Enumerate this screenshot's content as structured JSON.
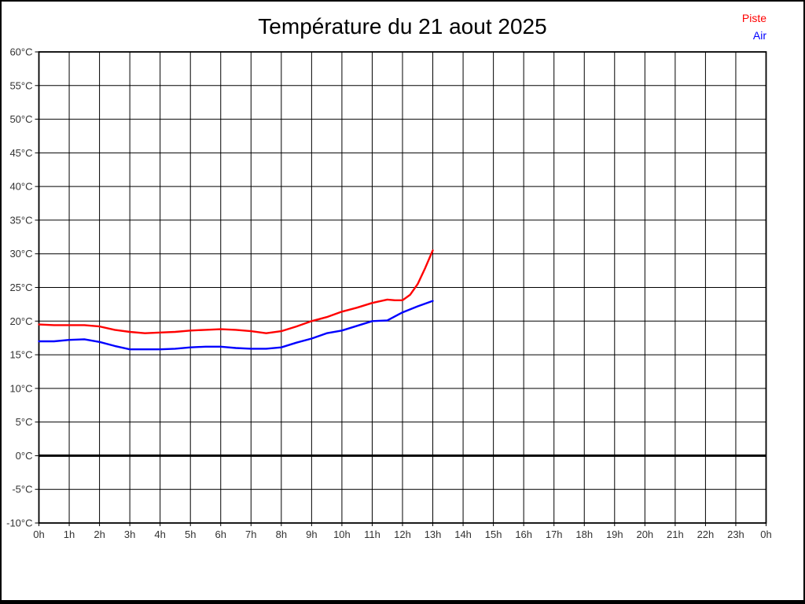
{
  "page": {
    "title": "Température du 21 aout 2025"
  },
  "legend": {
    "piste": "Piste",
    "air": "Air"
  },
  "colors": {
    "background": "#ffffff",
    "border": "#000000",
    "grid": "#000000",
    "frame": "#000000",
    "zero_line": "#000000",
    "title": "#000000",
    "tick_label": "#333333",
    "piste": "#ff0000",
    "air": "#0000ff"
  },
  "chart_data": {
    "type": "line",
    "title": "Température du 21 aout 2025",
    "xlabel": "",
    "ylabel": "",
    "xlim": [
      0,
      24
    ],
    "ylim": [
      -10,
      60
    ],
    "grid": true,
    "zero_line_value": 0,
    "legend_position": "top-right",
    "x_ticks": {
      "values": [
        0,
        1,
        2,
        3,
        4,
        5,
        6,
        7,
        8,
        9,
        10,
        11,
        12,
        13,
        14,
        15,
        16,
        17,
        18,
        19,
        20,
        21,
        22,
        23,
        24
      ],
      "labels": [
        "0h",
        "1h",
        "2h",
        "3h",
        "4h",
        "5h",
        "6h",
        "7h",
        "8h",
        "9h",
        "10h",
        "11h",
        "12h",
        "13h",
        "14h",
        "15h",
        "16h",
        "17h",
        "18h",
        "19h",
        "20h",
        "21h",
        "22h",
        "23h",
        "0h"
      ]
    },
    "y_ticks": {
      "values": [
        60,
        55,
        50,
        45,
        40,
        35,
        30,
        25,
        20,
        15,
        10,
        5,
        0,
        -5,
        -10
      ],
      "labels": [
        "60°C",
        "55°C",
        "50°C",
        "45°C",
        "40°C",
        "35°C",
        "30°C",
        "25°C",
        "20°C",
        "15°C",
        "10°C",
        "5°C",
        "0°C",
        "-5°C",
        "-10°C"
      ]
    },
    "series": [
      {
        "name": "Piste",
        "color": "#ff0000",
        "x": [
          0,
          0.5,
          1,
          1.5,
          2,
          2.5,
          3,
          3.5,
          4,
          4.5,
          5,
          5.5,
          6,
          6.5,
          7,
          7.5,
          8,
          8.5,
          9,
          9.5,
          10,
          10.5,
          11,
          11.5,
          11.75,
          12,
          12.25,
          12.5,
          12.75,
          13
        ],
        "y": [
          19.5,
          19.4,
          19.4,
          19.4,
          19.2,
          18.7,
          18.4,
          18.2,
          18.3,
          18.4,
          18.6,
          18.7,
          18.8,
          18.7,
          18.5,
          18.2,
          18.5,
          19.2,
          20.0,
          20.6,
          21.4,
          22.0,
          22.7,
          23.2,
          23.1,
          23.1,
          23.9,
          25.5,
          27.9,
          30.5
        ]
      },
      {
        "name": "Air",
        "color": "#0000ff",
        "x": [
          0,
          0.5,
          1,
          1.5,
          2,
          2.5,
          3,
          3.5,
          4,
          4.5,
          5,
          5.5,
          6,
          6.5,
          7,
          7.5,
          8,
          8.5,
          9,
          9.5,
          10,
          10.5,
          11,
          11.5,
          12,
          12.5,
          13
        ],
        "y": [
          17.0,
          17.0,
          17.2,
          17.3,
          16.9,
          16.3,
          15.8,
          15.8,
          15.8,
          15.9,
          16.1,
          16.2,
          16.2,
          16.0,
          15.9,
          15.9,
          16.1,
          16.8,
          17.4,
          18.2,
          18.6,
          19.3,
          20.0,
          20.1,
          21.3,
          22.2,
          23.0
        ]
      }
    ]
  }
}
